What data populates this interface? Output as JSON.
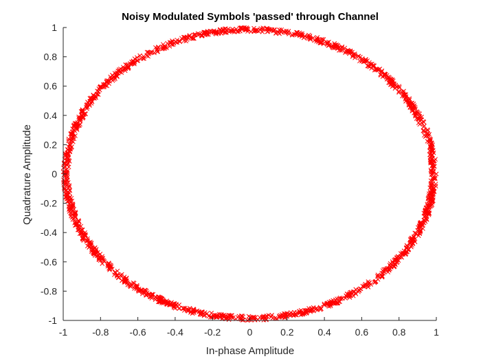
{
  "chart_data": {
    "type": "scatter",
    "title": "Noisy Modulated Symbols 'passed' through Channel",
    "xlabel": "In-phase Amplitude",
    "ylabel": "Quadrature Amplitude",
    "xlim": [
      -1,
      1
    ],
    "ylim": [
      -1,
      1
    ],
    "xticks": [
      -1,
      -0.8,
      -0.6,
      -0.4,
      -0.2,
      0,
      0.2,
      0.4,
      0.6,
      0.8,
      1
    ],
    "yticks": [
      -1,
      -0.8,
      -0.6,
      -0.4,
      -0.2,
      0,
      0.2,
      0.4,
      0.6,
      0.8,
      1
    ],
    "xtick_labels": [
      "-1",
      "-0.8",
      "-0.6",
      "-0.4",
      "-0.2",
      "0",
      "0.2",
      "0.4",
      "0.6",
      "0.8",
      "1"
    ],
    "ytick_labels": [
      "-1",
      "-0.8",
      "-0.6",
      "-0.4",
      "-0.2",
      "0",
      "0.2",
      "0.4",
      "0.6",
      "0.8",
      "1"
    ],
    "grid": false,
    "legend": "none",
    "marker": "x",
    "series": [
      {
        "color": "#ff0000",
        "shape": "unit circle of x-marker points (radius 0.98 to 1.0)",
        "points": [
          [
            1.0,
            0.0
          ],
          [
            0.995,
            0.1
          ],
          [
            0.98,
            0.199
          ],
          [
            0.955,
            0.296
          ],
          [
            0.921,
            0.389
          ],
          [
            0.878,
            0.479
          ],
          [
            0.825,
            0.565
          ],
          [
            0.765,
            0.644
          ],
          [
            0.697,
            0.717
          ],
          [
            0.622,
            0.783
          ],
          [
            0.54,
            0.841
          ],
          [
            0.454,
            0.891
          ],
          [
            0.362,
            0.932
          ],
          [
            0.267,
            0.964
          ],
          [
            0.17,
            0.985
          ],
          [
            0.071,
            0.997
          ],
          [
            -0.029,
            1.0
          ],
          [
            -0.129,
            0.992
          ],
          [
            -0.227,
            0.974
          ],
          [
            -0.323,
            0.946
          ],
          [
            -0.416,
            0.909
          ],
          [
            -0.505,
            0.863
          ],
          [
            -0.589,
            0.808
          ],
          [
            -0.666,
            0.746
          ],
          [
            -0.737,
            0.675
          ],
          [
            -0.801,
            0.598
          ],
          [
            -0.857,
            0.516
          ],
          [
            -0.904,
            0.427
          ],
          [
            -0.942,
            0.335
          ],
          [
            -0.971,
            0.239
          ],
          [
            -0.99,
            0.141
          ],
          [
            -0.999,
            0.042
          ],
          [
            -0.998,
            -0.058
          ],
          [
            -0.987,
            -0.158
          ],
          [
            -0.967,
            -0.256
          ],
          [
            -0.936,
            -0.351
          ],
          [
            -0.897,
            -0.443
          ],
          [
            -0.848,
            -0.53
          ],
          [
            -0.791,
            -0.612
          ],
          [
            -0.726,
            -0.688
          ],
          [
            -0.654,
            -0.757
          ],
          [
            -0.575,
            -0.818
          ],
          [
            -0.49,
            -0.872
          ],
          [
            -0.4,
            -0.916
          ],
          [
            -0.307,
            -0.952
          ],
          [
            -0.211,
            -0.978
          ],
          [
            -0.112,
            -0.994
          ],
          [
            -0.012,
            -1.0
          ],
          [
            0.088,
            -0.996
          ],
          [
            0.187,
            -0.982
          ],
          [
            0.284,
            -0.959
          ],
          [
            0.378,
            -0.926
          ],
          [
            0.469,
            -0.883
          ],
          [
            0.555,
            -0.832
          ],
          [
            0.635,
            -0.772
          ],
          [
            0.709,
            -0.705
          ],
          [
            0.776,
            -0.631
          ],
          [
            0.835,
            -0.55
          ],
          [
            0.886,
            -0.464
          ],
          [
            0.928,
            -0.373
          ],
          [
            0.96,
            -0.279
          ],
          [
            0.983,
            -0.182
          ],
          [
            0.997,
            -0.083
          ]
        ]
      }
    ]
  }
}
